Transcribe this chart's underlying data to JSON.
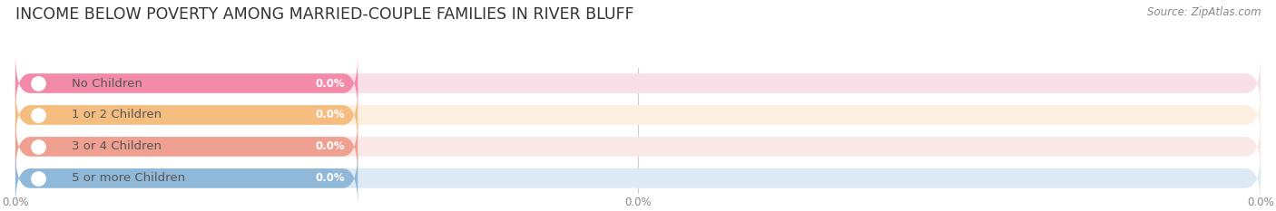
{
  "title": "INCOME BELOW POVERTY AMONG MARRIED-COUPLE FAMILIES IN RIVER BLUFF",
  "source": "Source: ZipAtlas.com",
  "categories": [
    "No Children",
    "1 or 2 Children",
    "3 or 4 Children",
    "5 or more Children"
  ],
  "values": [
    0.0,
    0.0,
    0.0,
    0.0
  ],
  "bar_colors": [
    "#f48aaa",
    "#f5be80",
    "#f0a090",
    "#90b8d8"
  ],
  "bar_bg_colors": [
    "#f9e0e8",
    "#fdf0e0",
    "#fae8e6",
    "#ddeaf5"
  ],
  "dot_colors": [
    "#f48aaa",
    "#f5be80",
    "#f0a090",
    "#90b8d8"
  ],
  "bg_color": "#ffffff",
  "bar_height": 0.62,
  "title_fontsize": 12.5,
  "source_fontsize": 8.5,
  "label_fontsize": 9.5,
  "value_fontsize": 8.5,
  "tick_fontsize": 8.5,
  "xtick_positions": [
    0,
    50,
    100
  ],
  "xtick_labels": [
    "0.0%",
    "0.0%",
    "0.0%"
  ],
  "grid_color": "#cccccc",
  "label_text_color": "#555555",
  "title_color": "#333333",
  "source_color": "#888888",
  "tick_color": "#888888"
}
